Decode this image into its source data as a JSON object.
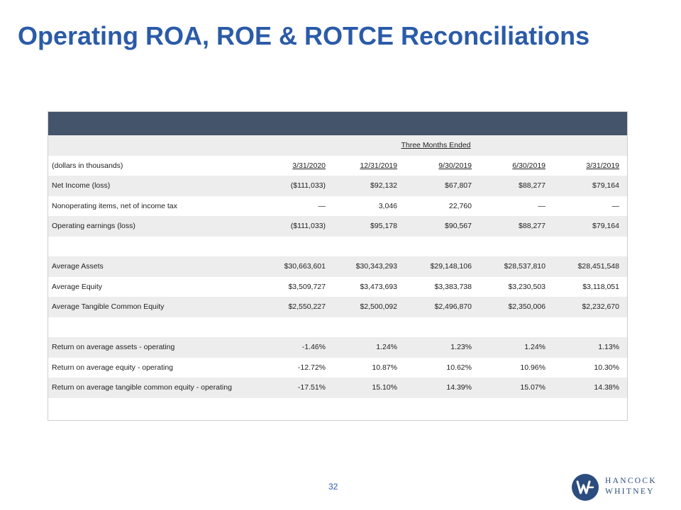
{
  "title": "Operating ROA, ROE & ROTCE Reconciliations",
  "table": {
    "period_header": "Three Months Ended",
    "units_label": "(dollars in thousands)",
    "columns": [
      "3/31/2020",
      "12/31/2019",
      "9/30/2019",
      "6/30/2019",
      "3/31/2019"
    ],
    "rows": [
      {
        "label": "Net Income (loss)",
        "values": [
          "($111,033)",
          "$92,132",
          "$67,807",
          "$88,277",
          "$79,164"
        ]
      },
      {
        "label": "Nonoperating items, net of income tax",
        "values": [
          "—",
          "3,046",
          "22,760",
          "—",
          "—"
        ]
      },
      {
        "label": "Operating earnings (loss)",
        "values": [
          "($111,033)",
          "$95,178",
          "$90,567",
          "$88,277",
          "$79,164"
        ]
      },
      {
        "label": "Average Assets",
        "values": [
          "$30,663,601",
          "$30,343,293",
          "$29,148,106",
          "$28,537,810",
          "$28,451,548"
        ]
      },
      {
        "label": "Average Equity",
        "values": [
          "$3,509,727",
          "$3,473,693",
          "$3,383,738",
          "$3,230,503",
          "$3,118,051"
        ]
      },
      {
        "label": "Average Tangible Common Equity",
        "values": [
          "$2,550,227",
          "$2,500,092",
          "$2,496,870",
          "$2,350,006",
          "$2,232,670"
        ]
      },
      {
        "label": "Return on average assets - operating",
        "values": [
          "-1.46%",
          "1.24%",
          "1.23%",
          "1.24%",
          "1.13%"
        ]
      },
      {
        "label": "Return on average equity - operating",
        "values": [
          "-12.72%",
          "10.87%",
          "10.62%",
          "10.96%",
          "10.30%"
        ]
      },
      {
        "label": "Return on average tangible common equity - operating",
        "values": [
          "-17.51%",
          "15.10%",
          "14.39%",
          "15.07%",
          "14.38%"
        ]
      }
    ]
  },
  "page_number": "32",
  "logo": {
    "line1": "HANCOCK",
    "line2": "WHITNEY",
    "mark_letter": "W"
  },
  "colors": {
    "title": "#2B5BA8",
    "table_header": "#44546A",
    "row_shade": "#EDEDED",
    "logo_blue": "#2B4C7E"
  }
}
